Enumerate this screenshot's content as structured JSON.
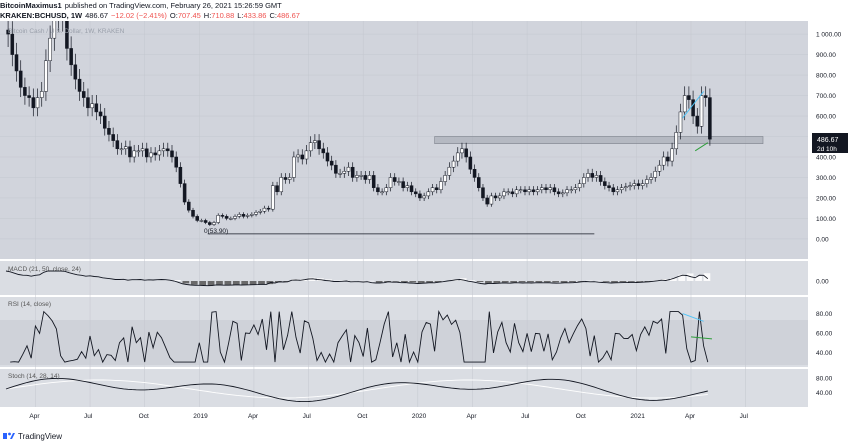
{
  "header": {
    "author": "BitcoinMaximus1",
    "published_text": "published on TradingView.com, February 26, 2021 15:26:59 GMT",
    "symbol": "KRAKEN:BCHUSD, 1W",
    "last": "486.67",
    "change": "−12.02 (−2.41%)",
    "o_label": "O:",
    "o": "707.45",
    "h_label": "H:",
    "h": "710.88",
    "l_label": "L:",
    "l": "433.86",
    "c_label": "C:",
    "c": "486.67"
  },
  "watermark": "Bitcoin Cash / U.S. Dollar, 1W, KRAKEN",
  "price_badge": {
    "value": "486.67",
    "countdown": "2d 10h"
  },
  "low_label": "0(53.90)",
  "footer": {
    "brand": "TradingView"
  },
  "colors": {
    "candle": "#131722",
    "bg_main": "#d1d4dc",
    "bg_ind": "#dadde3",
    "zone": "#9ea3ad",
    "blue_line": "#4fc3f7",
    "green_line": "#2e9e3a"
  },
  "chart_data": [
    {
      "type": "candlestick",
      "title": "Bitcoin Cash / U.S. Dollar, 1W, KRAKEN",
      "x_ticks": [
        "Apr",
        "Jul",
        "Oct",
        "2019",
        "Apr",
        "Jul",
        "Oct",
        "2020",
        "Apr",
        "Jul",
        "Oct",
        "2021",
        "Apr",
        "Jul"
      ],
      "y_ticks": [
        "1 000.00",
        "900.00",
        "800.00",
        "700.00",
        "600.00",
        "500.00",
        "400.00",
        "300.00",
        "200.00",
        "100.00",
        "0.00"
      ],
      "ylim": [
        -20,
        1020
      ],
      "last_price": 486.67,
      "resistance_zone": [
        465,
        500
      ],
      "low": 53.9,
      "close_approx": [
        1000,
        900,
        820,
        740,
        700,
        690,
        640,
        690,
        720,
        870,
        980,
        1080,
        1150,
        1080,
        930,
        850,
        780,
        720,
        690,
        640,
        660,
        620,
        600,
        540,
        510,
        480,
        440,
        440,
        450,
        400,
        430,
        430,
        440,
        400,
        420,
        410,
        430,
        440,
        430,
        400,
        350,
        270,
        180,
        140,
        110,
        90,
        90,
        80,
        70,
        80,
        115,
        110,
        100,
        100,
        110,
        120,
        110,
        115,
        120,
        130,
        135,
        150,
        145,
        260,
        230,
        300,
        290,
        300,
        400,
        410,
        390,
        430,
        470,
        480,
        440,
        420,
        380,
        360,
        320,
        320,
        330,
        350,
        300,
        310,
        310,
        290,
        310,
        250,
        230,
        230,
        250,
        300,
        280,
        280,
        250,
        260,
        230,
        220,
        200,
        210,
        230,
        250,
        240,
        280,
        310,
        350,
        380,
        420,
        440,
        400,
        340,
        300,
        250,
        200,
        170,
        210,
        200,
        210,
        230,
        230,
        220,
        240,
        240,
        230,
        240,
        230,
        240,
        250,
        240,
        250,
        230,
        220,
        225,
        240,
        240,
        250,
        270,
        300,
        320,
        300,
        310,
        280,
        260,
        250,
        230,
        240,
        250,
        255,
        260,
        270,
        260,
        270,
        290,
        300,
        330,
        360,
        400,
        380,
        440,
        520,
        620,
        700,
        680,
        600,
        550,
        700,
        690,
        487
      ]
    },
    {
      "type": "line",
      "title": "MACD (21, 50, close, 24)",
      "y_ticks": [
        "0.00"
      ]
    },
    {
      "type": "line",
      "title": "RSI (14, close)",
      "y_ticks": [
        "80.00",
        "60.00",
        "40.00"
      ],
      "bands": [
        30,
        70
      ]
    },
    {
      "type": "line",
      "title": "Stoch (14, 28, 14)",
      "y_ticks": [
        "80.00",
        "40.00"
      ]
    }
  ]
}
